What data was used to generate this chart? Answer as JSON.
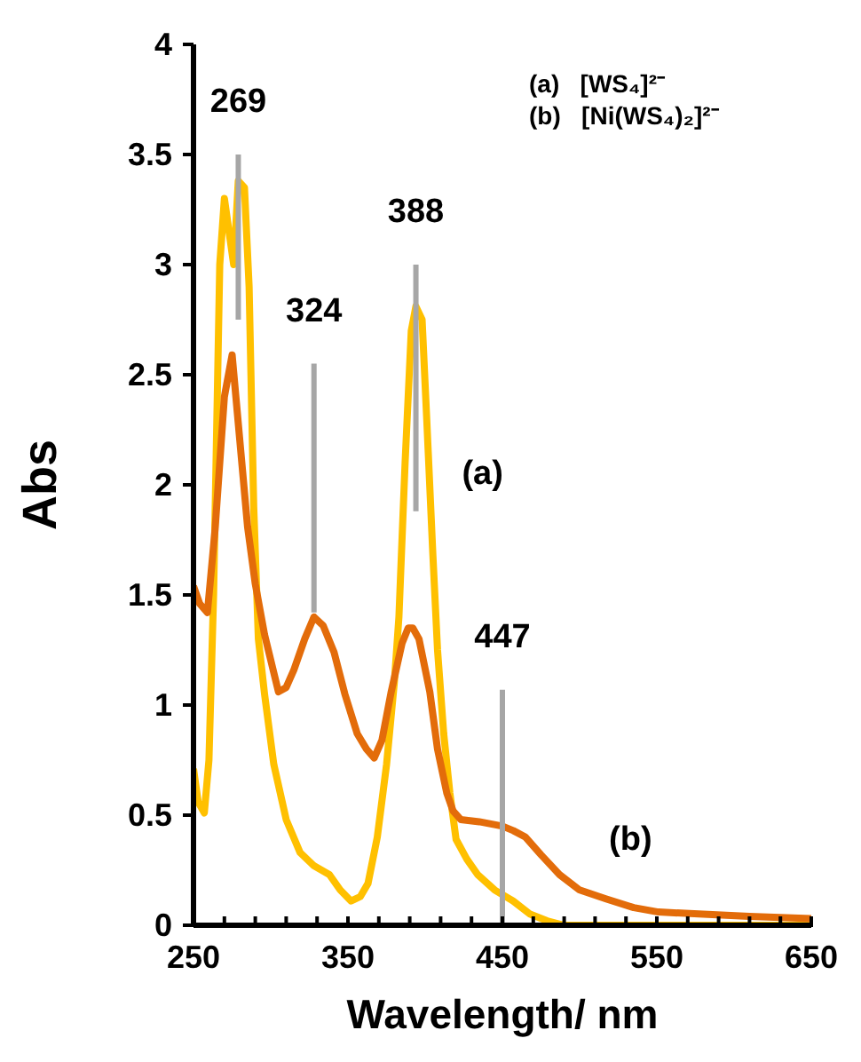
{
  "chart_data": {
    "type": "line",
    "xlabel": "Wavelength/ nm",
    "ylabel": "Abs",
    "xlim": [
      250,
      650
    ],
    "ylim": [
      0,
      4
    ],
    "xticks": [
      250,
      {
        "value": 270,
        "label": null
      },
      {
        "value": 290,
        "label": null
      },
      {
        "value": 310,
        "label": null
      },
      {
        "value": 330,
        "label": null
      },
      350,
      {
        "value": 370,
        "label": null
      },
      {
        "value": 390,
        "label": null
      },
      {
        "value": 410,
        "label": null
      },
      {
        "value": 430,
        "label": null
      },
      450,
      {
        "value": 470,
        "label": null
      },
      {
        "value": 490,
        "label": null
      },
      {
        "value": 510,
        "label": null
      },
      {
        "value": 530,
        "label": null
      },
      550,
      {
        "value": 570,
        "label": null
      },
      {
        "value": 590,
        "label": null
      },
      {
        "value": 610,
        "label": null
      },
      {
        "value": 630,
        "label": null
      },
      650
    ],
    "yticks": [
      0,
      0.5,
      1,
      1.5,
      2,
      2.5,
      3,
      3.5,
      4
    ],
    "grid": false,
    "legend": false,
    "marker": "none",
    "line_style": "solid",
    "series": [
      {
        "name": "(a)",
        "color": "#ffc000",
        "x": [
          250,
          253,
          257,
          260,
          263,
          267,
          270,
          274,
          276,
          279,
          283,
          286,
          289,
          292,
          296,
          302,
          310,
          319,
          328,
          338,
          345,
          352,
          358,
          363,
          369,
          375,
          380,
          383,
          387,
          391,
          394,
          398,
          401,
          405,
          408,
          412,
          416,
          420,
          427,
          434,
          445,
          457,
          468,
          479,
          490,
          520,
          560,
          600,
          650
        ],
        "values": [
          0.71,
          0.56,
          0.51,
          0.75,
          1.5,
          3.0,
          3.3,
          3.1,
          3.0,
          3.38,
          3.35,
          2.9,
          1.9,
          1.3,
          1.05,
          0.73,
          0.48,
          0.33,
          0.27,
          0.23,
          0.16,
          0.11,
          0.13,
          0.19,
          0.4,
          0.73,
          1.1,
          1.4,
          2.1,
          2.7,
          2.81,
          2.75,
          2.3,
          1.68,
          1.25,
          0.87,
          0.6,
          0.39,
          0.3,
          0.23,
          0.16,
          0.11,
          0.05,
          0.02,
          0.0,
          0.0,
          0.0,
          0.0,
          0.0
        ]
      },
      {
        "name": "(b)",
        "color": "#e36c0a",
        "x": [
          250,
          254,
          259,
          264,
          270,
          275,
          280,
          285,
          290,
          296,
          305,
          310,
          315,
          322,
          328,
          334,
          341,
          348,
          356,
          362,
          367,
          372,
          378,
          385,
          389,
          392,
          396,
          403,
          408,
          414,
          418,
          423,
          435,
          450,
          457,
          465,
          475,
          487,
          500,
          517,
          535,
          551,
          580,
          610,
          650
        ],
        "values": [
          1.54,
          1.46,
          1.42,
          1.8,
          2.4,
          2.59,
          2.2,
          1.81,
          1.55,
          1.32,
          1.06,
          1.08,
          1.16,
          1.3,
          1.4,
          1.36,
          1.24,
          1.05,
          0.87,
          0.8,
          0.76,
          0.84,
          1.06,
          1.28,
          1.35,
          1.35,
          1.3,
          1.06,
          0.8,
          0.6,
          0.52,
          0.48,
          0.47,
          0.45,
          0.43,
          0.4,
          0.32,
          0.23,
          0.16,
          0.12,
          0.08,
          0.06,
          0.05,
          0.04,
          0.03
        ]
      },
      {
        "name": "269",
        "color": "#a6a6a6",
        "x": [
          279,
          279
        ],
        "values": [
          3.5,
          2.75
        ]
      },
      {
        "name": "324",
        "color": "#a6a6a6",
        "x": [
          328,
          328
        ],
        "values": [
          2.55,
          1.42
        ]
      },
      {
        "name": "388",
        "color": "#a6a6a6",
        "x": [
          394,
          394
        ],
        "values": [
          3.0,
          1.88
        ]
      },
      {
        "name": "447",
        "color": "#a6a6a6",
        "x": [
          450,
          450
        ],
        "values": [
          1.07,
          0.0
        ]
      }
    ],
    "annotations": [
      "(a)   [WS₄]²⁻",
      "(b)   [Ni(WS₄)₂]²⁻"
    ]
  }
}
